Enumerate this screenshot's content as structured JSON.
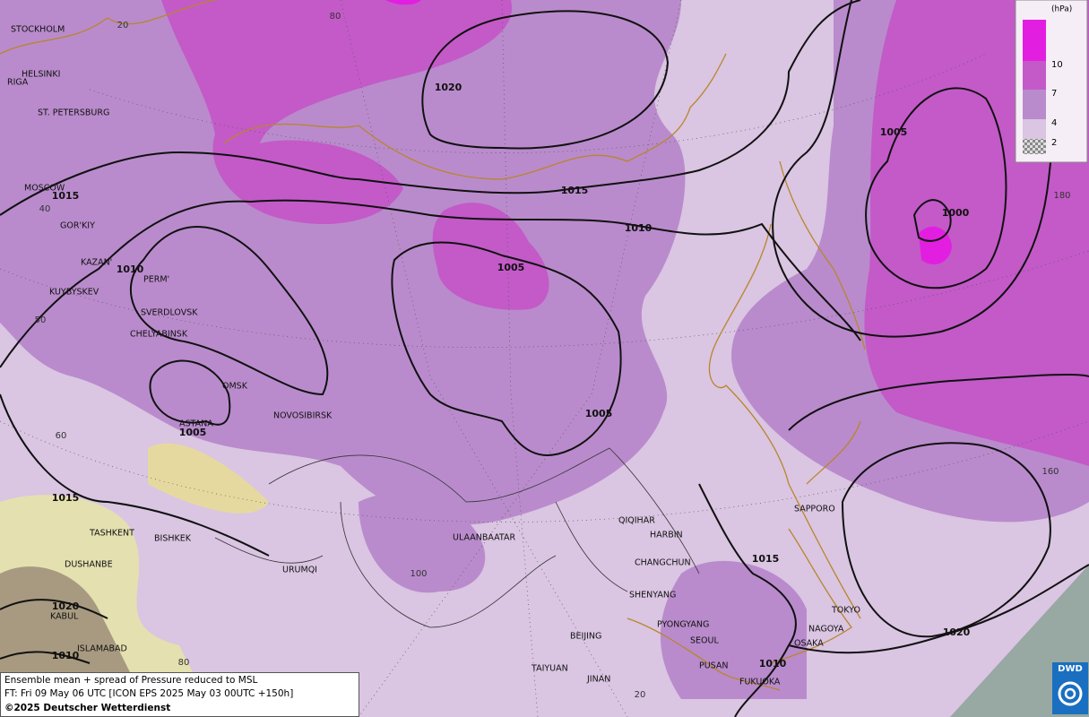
{
  "map": {
    "cities": [
      "STOCKHOLM",
      "HELSINKI",
      "RIGA",
      "ST. PETERSBURG",
      "MOSCOW",
      "GOR'KIY",
      "KAZAN'",
      "PERM'",
      "KUYBYSKEV",
      "SVERDLOVSK",
      "CHELYABINSK",
      "OMSK",
      "NOVOSIBIRSK",
      "ASTANA",
      "TASHKENT",
      "BISHKEK",
      "DUSHANBE",
      "URUMQI",
      "KABUL",
      "ISLAMABAD",
      "ULAANBAATAR",
      "QIQIHAR",
      "HARBIN",
      "CHANGCHUN",
      "SHENYANG",
      "PYONGYANG",
      "SEOUL",
      "BEIJING",
      "TAIYUAN",
      "JINAN",
      "PUSAN",
      "FUKUOKA",
      "SAPPORO",
      "TOKYO",
      "NAGOYA",
      "OSAKA"
    ],
    "isobar_labels": [
      "1020",
      "1015",
      "1010",
      "1005",
      "1005",
      "1015",
      "1010",
      "1005",
      "1015",
      "1020",
      "1010",
      "1015",
      "1020",
      "1010",
      "1005",
      "1000"
    ],
    "grid_labels": [
      "20",
      "80",
      "40",
      "50",
      "60",
      "100",
      "80",
      "20",
      "180",
      "160"
    ]
  },
  "legend": {
    "title": "(hPa)",
    "levels": [
      "10",
      "7",
      "4",
      "2"
    ]
  },
  "caption": {
    "lines": [
      "Ensemble mean + spread of Pressure reduced to MSL",
      "FT: Fri 09 May 06 UTC [ICON EPS 2025 May 03 00UTC +150h]",
      "©2025 Deutscher Wetterdienst"
    ]
  },
  "logo": {
    "text": "DWD"
  }
}
